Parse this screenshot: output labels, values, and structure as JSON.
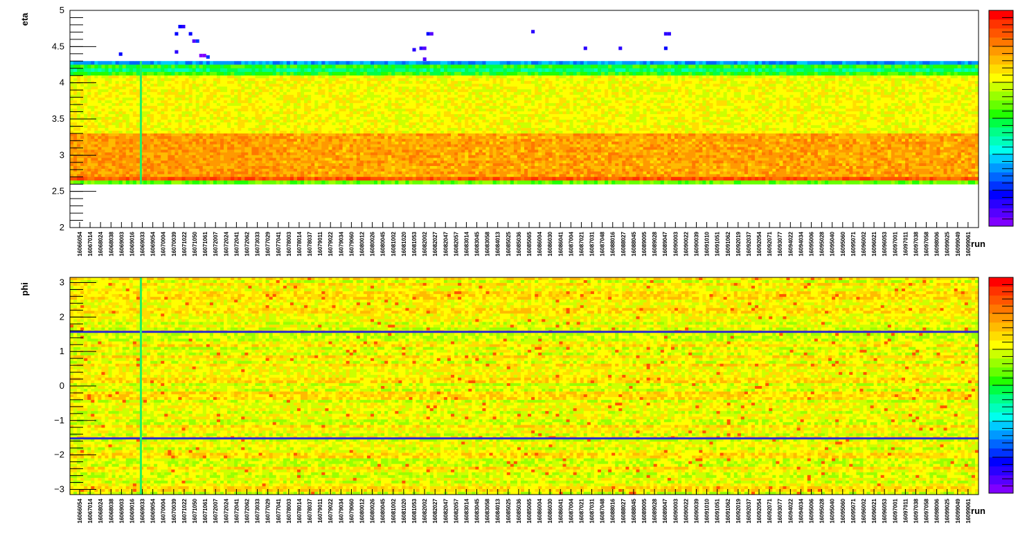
{
  "chart_data": [
    {
      "type": "heatmap",
      "xlabel": "run",
      "ylabel": "eta",
      "ylim": [
        2,
        5
      ],
      "y_ticks": [
        "2",
        "2.5",
        "3",
        "3.5",
        "4",
        "4.5",
        "5"
      ],
      "x_tick_labels": [
        "16066054",
        "16067014",
        "16068024",
        "16068038",
        "16069003",
        "16069016",
        "16069033",
        "16069054",
        "16070004",
        "16070039",
        "16071022",
        "16071050",
        "16071061",
        "16072007",
        "16072024",
        "16072041",
        "16072062",
        "16073033",
        "16077029",
        "16077041",
        "16078003",
        "16078014",
        "16078037",
        "16079011",
        "16079022",
        "16079034",
        "16079060",
        "16080012",
        "16080026",
        "16080045",
        "16081002",
        "16081020",
        "16081053",
        "16082002",
        "16082027",
        "16082047",
        "16082057",
        "16083014",
        "16083045",
        "16083058",
        "16084013",
        "16085025",
        "16085036",
        "16085065",
        "16086004",
        "16086030",
        "16086041",
        "16087004",
        "16087021",
        "16087031",
        "16087048",
        "16088016",
        "16088027",
        "16088045",
        "16089005",
        "16089028",
        "16089047",
        "16090003",
        "16090022",
        "16090039",
        "16091010",
        "16091051",
        "16091062",
        "16092019",
        "16092037",
        "16092054",
        "16092071",
        "16093077",
        "16094022",
        "16094034",
        "16095006",
        "16095028",
        "16095040",
        "16095060",
        "16095071",
        "16096002",
        "16096021",
        "16096053",
        "16097001",
        "16097011",
        "16097038",
        "16097058",
        "16098006",
        "16099025",
        "16099049",
        "16099061"
      ],
      "colorscale": [
        "#7f00ff",
        "#5500ff",
        "#2a00ff",
        "#0000ff",
        "#0033ff",
        "#0066ff",
        "#0099ff",
        "#00ccff",
        "#00ffee",
        "#00ffbb",
        "#00ff88",
        "#00ff44",
        "#22ff00",
        "#66ff00",
        "#99ff00",
        "#ccff00",
        "#ffff00",
        "#ffdd00",
        "#ffbb00",
        "#ff9900",
        "#ff7700",
        "#ff5500",
        "#ff3300",
        "#ff0000"
      ],
      "bands": [
        {
          "y": [
            4.25,
            4.3
          ],
          "level": 6
        },
        {
          "y": [
            4.2,
            4.25
          ],
          "level": 12
        },
        {
          "y": [
            4.15,
            4.2
          ],
          "level": 10
        },
        {
          "y": [
            4.1,
            4.15
          ],
          "level": 12
        },
        {
          "y": [
            3.3,
            4.1
          ],
          "level": 16
        },
        {
          "y": [
            2.7,
            3.3
          ],
          "level": 19
        },
        {
          "y": [
            2.65,
            2.7
          ],
          "level": 21
        },
        {
          "y": [
            2.6,
            2.65
          ],
          "level": 13
        }
      ]
    },
    {
      "type": "heatmap",
      "xlabel": "run",
      "ylabel": "phi",
      "ylim": [
        -3.15,
        3.15
      ],
      "y_ticks": [
        "−3",
        "−2",
        "−1",
        "0",
        "1",
        "2",
        "3"
      ],
      "y_tick_values": [
        -3,
        -2,
        -1,
        0,
        1,
        2,
        3
      ],
      "x_tick_labels": [
        "16066054",
        "16067014",
        "16068024",
        "16068038",
        "16069003",
        "16069016",
        "16069033",
        "16069054",
        "16070004",
        "16070039",
        "16071022",
        "16071050",
        "16071061",
        "16072007",
        "16072024",
        "16072041",
        "16072062",
        "16073033",
        "16077029",
        "16077041",
        "16078003",
        "16078014",
        "16078037",
        "16079011",
        "16079022",
        "16079034",
        "16079060",
        "16080012",
        "16080026",
        "16080045",
        "16081002",
        "16081020",
        "16081053",
        "16082002",
        "16082027",
        "16082047",
        "16082057",
        "16083014",
        "16083045",
        "16083058",
        "16084013",
        "16085025",
        "16085036",
        "16085065",
        "16086004",
        "16086030",
        "16086041",
        "16087004",
        "16087021",
        "16087031",
        "16087048",
        "16088016",
        "16088027",
        "16088045",
        "16089005",
        "16089028",
        "16089047",
        "16090003",
        "16090022",
        "16090039",
        "16091010",
        "16091051",
        "16091062",
        "16092019",
        "16092037",
        "16092054",
        "16092071",
        "16093077",
        "16094022",
        "16094034",
        "16095006",
        "16095028",
        "16095040",
        "16095060",
        "16095071",
        "16096002",
        "16096021",
        "16096053",
        "16097001",
        "16097011",
        "16097038",
        "16097058",
        "16098006",
        "16099025",
        "16099049",
        "16099061"
      ],
      "colorscale": [
        "#7f00ff",
        "#5500ff",
        "#2a00ff",
        "#0000ff",
        "#0033ff",
        "#0066ff",
        "#0099ff",
        "#00ccff",
        "#00ffee",
        "#00ffbb",
        "#00ff88",
        "#00ff44",
        "#22ff00",
        "#66ff00",
        "#99ff00",
        "#ccff00",
        "#ffff00",
        "#ffdd00",
        "#ffbb00",
        "#ff9900",
        "#ff7700",
        "#ff5500",
        "#ff3300",
        "#ff0000"
      ],
      "dead_rows": [
        1.57,
        -1.52
      ]
    }
  ]
}
